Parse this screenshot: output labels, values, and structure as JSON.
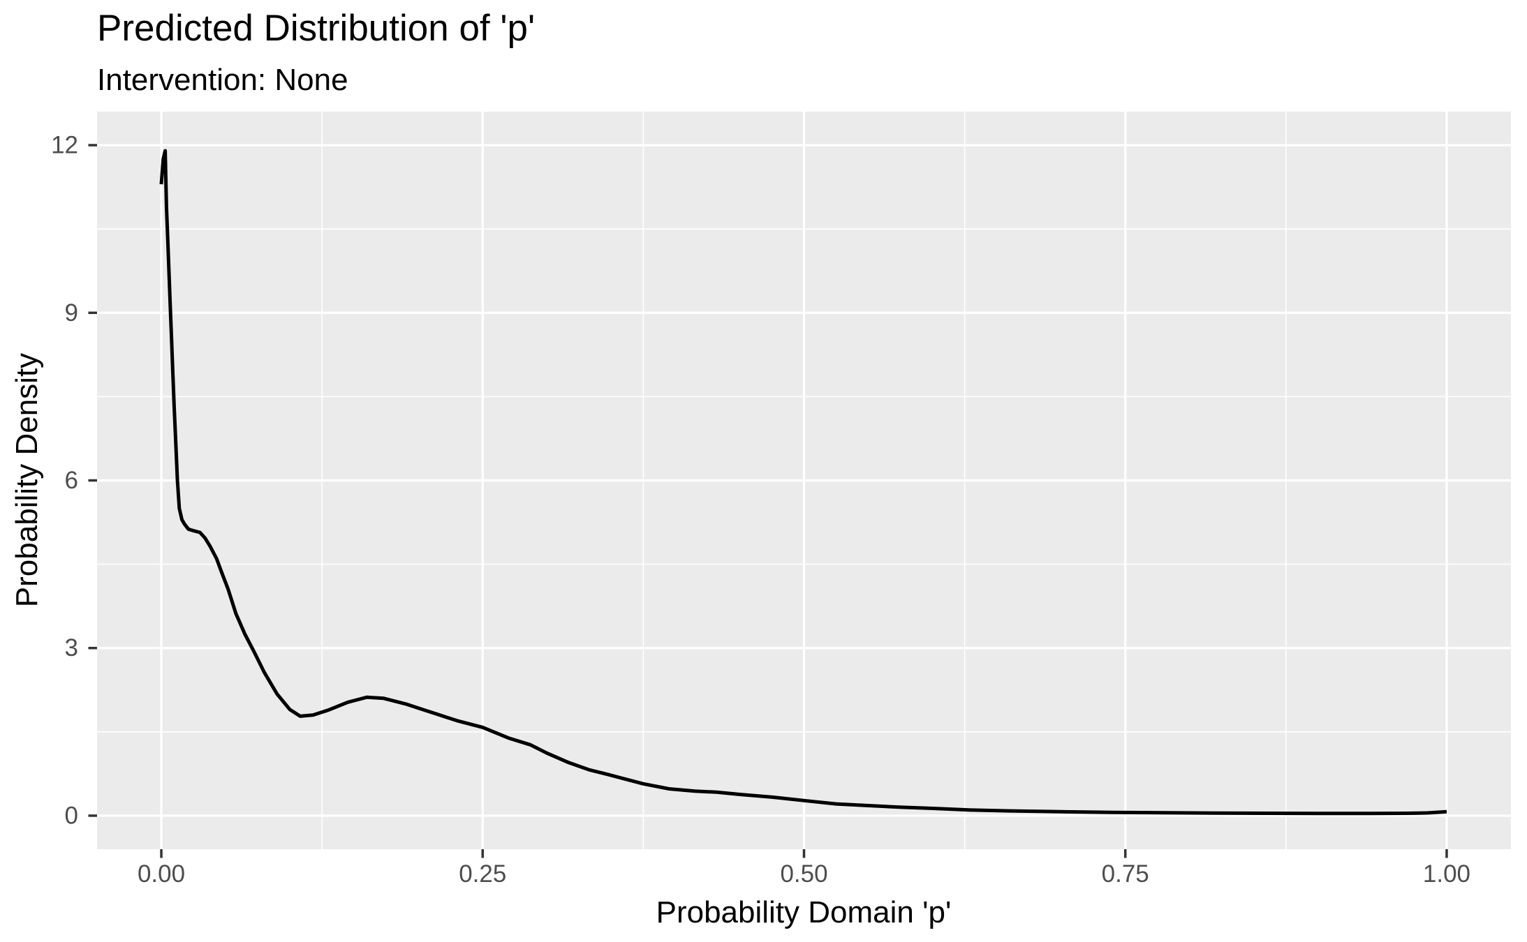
{
  "chart_data": {
    "type": "line",
    "title": "Predicted Distribution of 'p'",
    "subtitle": "Intervention: None",
    "xlabel": "Probability Domain 'p'",
    "ylabel": "Probability Density",
    "x_range": [
      0,
      1
    ],
    "y_range": [
      0,
      12
    ],
    "expansion": 0.05,
    "grid": "major and minor, white on gray panel",
    "legend": "none",
    "x_ticks": [
      {
        "value": 0,
        "label": "0.00"
      },
      {
        "value": 0.25,
        "label": "0.25"
      },
      {
        "value": 0.5,
        "label": "0.50"
      },
      {
        "value": 0.75,
        "label": "0.75"
      },
      {
        "value": 1,
        "label": "1.00"
      }
    ],
    "y_ticks": [
      {
        "value": 0,
        "label": "0"
      },
      {
        "value": 3,
        "label": "3"
      },
      {
        "value": 6,
        "label": "6"
      },
      {
        "value": 9,
        "label": "9"
      },
      {
        "value": 12,
        "label": "12"
      }
    ],
    "x_minor": [
      0.125,
      0.375,
      0.625,
      0.875
    ],
    "y_minor": [
      1.5,
      4.5,
      7.5,
      10.5
    ],
    "series": [
      {
        "name": "density",
        "color": "#000000",
        "points": [
          [
            0.0,
            11.3
          ],
          [
            0.0015,
            11.75
          ],
          [
            0.003,
            11.9
          ],
          [
            0.004,
            10.9
          ],
          [
            0.005,
            10.3
          ],
          [
            0.006,
            9.7
          ],
          [
            0.007,
            9.1
          ],
          [
            0.008,
            8.5
          ],
          [
            0.009,
            7.9
          ],
          [
            0.01,
            7.3
          ],
          [
            0.011,
            6.8
          ],
          [
            0.0125,
            6.0
          ],
          [
            0.014,
            5.5
          ],
          [
            0.016,
            5.3
          ],
          [
            0.018,
            5.22
          ],
          [
            0.021,
            5.13
          ],
          [
            0.025,
            5.1
          ],
          [
            0.03,
            5.07
          ],
          [
            0.034,
            4.97
          ],
          [
            0.038,
            4.82
          ],
          [
            0.043,
            4.6
          ],
          [
            0.047,
            4.35
          ],
          [
            0.052,
            4.05
          ],
          [
            0.058,
            3.62
          ],
          [
            0.065,
            3.25
          ],
          [
            0.072,
            2.94
          ],
          [
            0.08,
            2.57
          ],
          [
            0.09,
            2.18
          ],
          [
            0.1,
            1.9
          ],
          [
            0.108,
            1.78
          ],
          [
            0.118,
            1.8
          ],
          [
            0.13,
            1.89
          ],
          [
            0.145,
            2.03
          ],
          [
            0.16,
            2.12
          ],
          [
            0.173,
            2.1
          ],
          [
            0.19,
            2.0
          ],
          [
            0.21,
            1.85
          ],
          [
            0.23,
            1.7
          ],
          [
            0.25,
            1.58
          ],
          [
            0.27,
            1.39
          ],
          [
            0.287,
            1.27
          ],
          [
            0.3,
            1.12
          ],
          [
            0.317,
            0.95
          ],
          [
            0.333,
            0.82
          ],
          [
            0.347,
            0.74
          ],
          [
            0.36,
            0.66
          ],
          [
            0.375,
            0.57
          ],
          [
            0.395,
            0.48
          ],
          [
            0.415,
            0.44
          ],
          [
            0.432,
            0.42
          ],
          [
            0.45,
            0.38
          ],
          [
            0.476,
            0.33
          ],
          [
            0.5,
            0.27
          ],
          [
            0.525,
            0.21
          ],
          [
            0.55,
            0.18
          ],
          [
            0.576,
            0.15
          ],
          [
            0.6,
            0.13
          ],
          [
            0.63,
            0.1
          ],
          [
            0.66,
            0.085
          ],
          [
            0.7,
            0.07
          ],
          [
            0.74,
            0.06
          ],
          [
            0.78,
            0.052
          ],
          [
            0.82,
            0.047
          ],
          [
            0.86,
            0.043
          ],
          [
            0.9,
            0.04
          ],
          [
            0.94,
            0.04
          ],
          [
            0.97,
            0.043
          ],
          [
            0.985,
            0.05
          ],
          [
            1.0,
            0.07
          ]
        ]
      }
    ]
  },
  "style": {
    "background": "#FFFFFF",
    "panel_bg": "#EBEBEB",
    "grid_color": "#FFFFFF",
    "tick_mark_color": "#333333",
    "tick_label_color": "#4D4D4D",
    "text_color": "#000000",
    "line_color": "#000000",
    "line_width": 5
  }
}
